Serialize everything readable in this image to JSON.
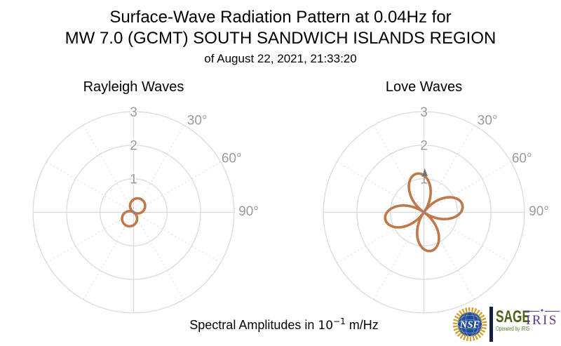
{
  "header": {
    "title_line1": "Surface-Wave Radiation Pattern at 0.04Hz for",
    "title_line2": "MW 7.0 (GCMT) SOUTH SANDWICH ISLANDS REGION",
    "subtitle": "of August 22, 2021, 21:33:20"
  },
  "footer": {
    "label_prefix": "Spectral Amplitudes in ",
    "unit_base": "10",
    "unit_exponent": "−1",
    "unit_suffix": " m/Hz"
  },
  "logos": {
    "nsf_text": "NSF",
    "sage_text": "SAGE",
    "sage_subtext": "Operated by IRIS",
    "iris_text": "IRIS",
    "iris_star": "✦"
  },
  "colors": {
    "curve": "#c0784a",
    "grid": "#dadada",
    "theta_label": "#9a9a9a",
    "r_label": "#9a9a9a",
    "marker": "#8a8a8a",
    "arrow": "#757575",
    "nsf_gold": "#c9a22f",
    "nsf_blue": "#1d4a99",
    "sage_green": "#4a641c",
    "operated_green": "#57822b",
    "iris_purple": "#5d3b8e"
  },
  "chart_data": [
    {
      "type": "polar_line",
      "title": "Rayleigh Waves",
      "r_axis": {
        "ticks": [
          1,
          2,
          3
        ],
        "labels": [
          "1",
          "2",
          "3"
        ],
        "max": 3
      },
      "theta_axis": {
        "labels": [
          "30°",
          "60°",
          "90°"
        ],
        "azimuths_deg": [
          30,
          60,
          90
        ],
        "dotted_grid_azimuths_deg": [
          30,
          60,
          120,
          150
        ],
        "solid_grid_azimuths_deg": [
          0,
          90
        ]
      },
      "pattern": {
        "model": "r(az) = A * |cos(az - phi)|",
        "form": "abs_cos",
        "A": 0.45,
        "phi_deg": 32,
        "lobe_azimuths_deg": [
          32,
          212
        ],
        "peak_amplitude": 0.45,
        "amplitude_units": "10^-1 m/Hz"
      },
      "center_marker": true,
      "arrow": null
    },
    {
      "type": "polar_line",
      "title": "Love Waves",
      "r_axis": {
        "ticks": [
          1,
          2,
          3
        ],
        "labels": [
          "1",
          "2",
          "3"
        ],
        "max": 3
      },
      "theta_axis": {
        "labels": [
          "30°",
          "60°",
          "90°"
        ],
        "azimuths_deg": [
          30,
          60,
          90
        ],
        "dotted_grid_azimuths_deg": [
          30,
          60,
          120,
          150
        ],
        "solid_grid_azimuths_deg": [
          0,
          90
        ]
      },
      "pattern": {
        "model": "r(az) = A * |sin(2*(az - phi))|",
        "form": "abs_sin2",
        "A": 1.17,
        "phi_deg": -55,
        "lobe_azimuths_deg": [
          -10,
          80,
          170,
          260
        ],
        "peak_amplitude": 1.17,
        "amplitude_units": "10^-1 m/Hz"
      },
      "center_marker": true,
      "arrow": {
        "azimuth_deg": 1,
        "r_tip": 1.31,
        "r_base": 1.06
      }
    }
  ]
}
